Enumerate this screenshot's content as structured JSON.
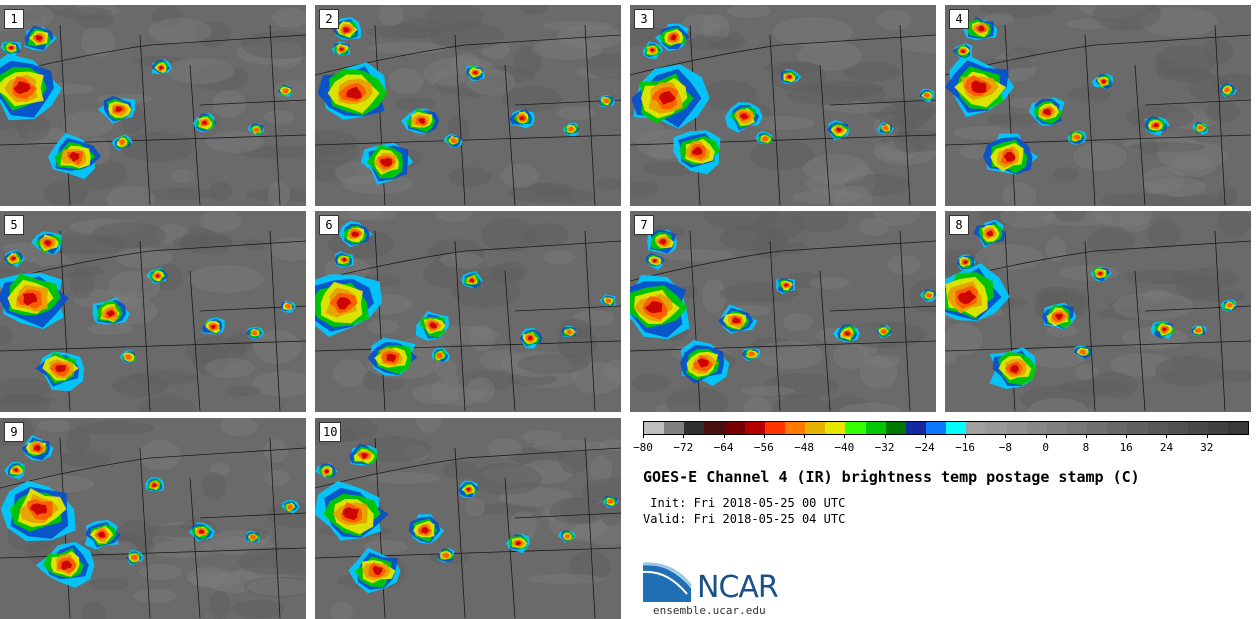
{
  "panels": [
    {
      "label": "1"
    },
    {
      "label": "2"
    },
    {
      "label": "3"
    },
    {
      "label": "4"
    },
    {
      "label": "5"
    },
    {
      "label": "6"
    },
    {
      "label": "7"
    },
    {
      "label": "8"
    },
    {
      "label": "9"
    },
    {
      "label": "10"
    }
  ],
  "colorbar": {
    "colors": [
      "#c0c0c0",
      "#808080",
      "#303030",
      "#4a1010",
      "#780000",
      "#b40000",
      "#ff3200",
      "#ff7a00",
      "#e6b400",
      "#e6e600",
      "#32ff00",
      "#00c800",
      "#007800",
      "#1428a0",
      "#0a78ff",
      "#00ffff",
      "#a0a0a0",
      "#989898",
      "#909090",
      "#888888",
      "#808080",
      "#787878",
      "#707070",
      "#686868",
      "#606060",
      "#585858",
      "#505050",
      "#484848",
      "#404040",
      "#383838"
    ],
    "tick_labels": [
      "−80",
      "−72",
      "−64",
      "−56",
      "−48",
      "−40",
      "−32",
      "−24",
      "−16",
      "−8",
      "0",
      "8",
      "16",
      "24",
      "32"
    ],
    "range": [
      -80,
      40
    ]
  },
  "title": "GOES-E Channel 4 (IR) brightness temp postage stamp (C)",
  "init": " Init: Fri 2018-05-25 00 UTC",
  "valid": "Valid: Fri 2018-05-25 04 UTC",
  "logo_text": "NCAR",
  "url": "ensemble.ucar.edu"
}
